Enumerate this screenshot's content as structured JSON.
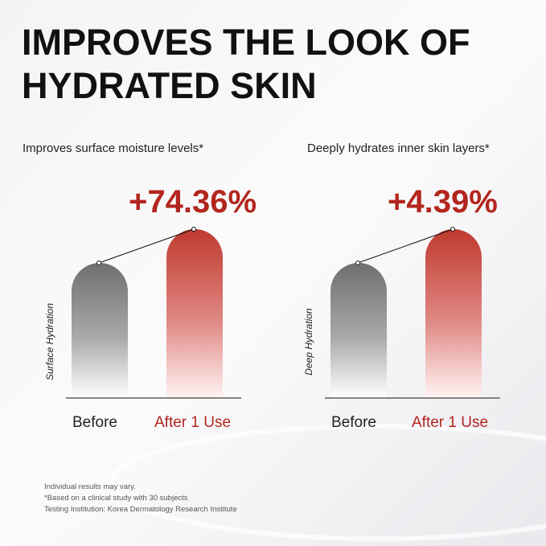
{
  "header": {
    "title_lines": [
      "IMPROVES THE LOOK OF",
      "HYDRATED SKIN"
    ]
  },
  "panels": [
    {
      "subtitle": "Improves surface moisture levels*",
      "change": "+74.36%",
      "axis_label": "Surface Hydration",
      "categories": [
        "Before",
        "After 1 Use"
      ]
    },
    {
      "subtitle": "Deeply hydrates inner skin layers*",
      "change": "+4.39%",
      "axis_label": "Deep Hydration",
      "categories": [
        "Before",
        "After 1 Use"
      ]
    }
  ],
  "footnotes": [
    "Individual results may vary.",
    "*Based on a clinical study with 30 subjects",
    "Testing Institution: Korea Dermatology Research Institute"
  ]
}
